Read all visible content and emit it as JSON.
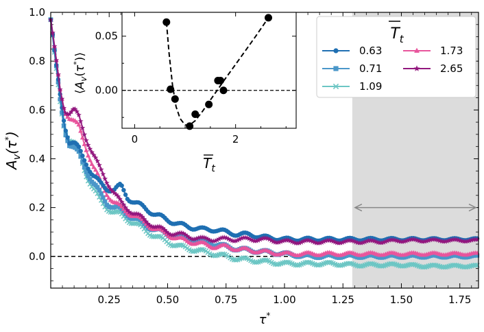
{
  "chart_data": [
    {
      "type": "line",
      "role": "main",
      "title": "",
      "xlabel": "τ*",
      "ylabel": "A_v(τ*)",
      "xlim": [
        0.0,
        1.83
      ],
      "ylim": [
        -0.13,
        1.0
      ],
      "xticks": [
        0.25,
        0.5,
        0.75,
        1.0,
        1.25,
        1.5,
        1.75
      ],
      "xtick_labels": [
        "0.25",
        "0.50",
        "0.75",
        "1.00",
        "1.25",
        "1.50",
        "1.75"
      ],
      "yticks": [
        0.0,
        0.2,
        0.4,
        0.6,
        0.8,
        1.0
      ],
      "ytick_labels": [
        "0.0",
        "0.2",
        "0.4",
        "0.6",
        "0.8",
        "1.0"
      ],
      "shaded_region": {
        "x_start": 1.29,
        "x_end": 1.83,
        "color": "#dcdcdc"
      },
      "double_arrow": {
        "x_start": 1.29,
        "x_end": 1.83,
        "y": 0.2,
        "color": "#888888"
      },
      "reference_line": {
        "y": 0.0,
        "style": "dashed"
      },
      "legend": {
        "title": "T̄_t",
        "placement": "top-right",
        "entries": [
          {
            "label": "0.63",
            "marker": "circle",
            "color": "#1f6fb2"
          },
          {
            "label": "1.73",
            "marker": "triangle",
            "color": "#e8559c"
          },
          {
            "label": "0.71",
            "marker": "square",
            "color": "#4a97c9"
          },
          {
            "label": "2.65",
            "marker": "star",
            "color": "#92177e"
          },
          {
            "label": "1.09",
            "marker": "x",
            "color": "#6cc6c4"
          }
        ]
      },
      "series": [
        {
          "name": "0.63",
          "color": "#1f6fb2",
          "marker": "circle",
          "x": [
            0.0,
            0.02,
            0.04,
            0.06,
            0.08,
            0.1,
            0.12,
            0.15,
            0.18,
            0.21,
            0.24,
            0.27,
            0.3,
            0.33,
            0.36,
            0.4,
            0.45,
            0.5,
            0.55,
            0.6,
            0.65,
            0.7,
            0.75,
            0.8,
            0.85,
            0.9,
            1.0,
            1.1,
            1.2,
            1.3,
            1.4,
            1.5,
            1.6,
            1.7,
            1.83
          ],
          "values": [
            0.97,
            0.8,
            0.66,
            0.54,
            0.47,
            0.46,
            0.44,
            0.39,
            0.33,
            0.3,
            0.28,
            0.27,
            0.29,
            0.24,
            0.22,
            0.2,
            0.17,
            0.15,
            0.13,
            0.12,
            0.11,
            0.11,
            0.1,
            0.09,
            0.09,
            0.08,
            0.07,
            0.07,
            0.07,
            0.07,
            0.07,
            0.07,
            0.07,
            0.07,
            0.07
          ]
        },
        {
          "name": "0.71",
          "color": "#4a97c9",
          "marker": "square",
          "x": [
            0.0,
            0.02,
            0.04,
            0.06,
            0.08,
            0.1,
            0.12,
            0.15,
            0.18,
            0.21,
            0.24,
            0.27,
            0.3,
            0.35,
            0.4,
            0.45,
            0.5,
            0.55,
            0.6,
            0.65,
            0.7,
            0.75,
            0.8,
            0.9,
            1.0,
            1.1,
            1.2,
            1.3,
            1.4,
            1.5,
            1.6,
            1.7,
            1.83
          ],
          "values": [
            0.97,
            0.8,
            0.64,
            0.52,
            0.46,
            0.44,
            0.42,
            0.36,
            0.3,
            0.26,
            0.22,
            0.2,
            0.19,
            0.16,
            0.13,
            0.11,
            0.09,
            0.08,
            0.07,
            0.06,
            0.05,
            0.04,
            0.03,
            0.02,
            0.01,
            0.0,
            0.0,
            0.0,
            0.0,
            0.0,
            0.0,
            0.0,
            0.0
          ]
        },
        {
          "name": "1.09",
          "color": "#6cc6c4",
          "marker": "x",
          "x": [
            0.0,
            0.02,
            0.04,
            0.06,
            0.08,
            0.1,
            0.12,
            0.15,
            0.18,
            0.21,
            0.24,
            0.27,
            0.3,
            0.35,
            0.4,
            0.45,
            0.5,
            0.55,
            0.6,
            0.65,
            0.7,
            0.75,
            0.8,
            0.9,
            1.0,
            1.1,
            1.2,
            1.3,
            1.4,
            1.5,
            1.6,
            1.7,
            1.83
          ],
          "values": [
            0.97,
            0.79,
            0.63,
            0.52,
            0.48,
            0.46,
            0.43,
            0.34,
            0.28,
            0.23,
            0.2,
            0.18,
            0.17,
            0.14,
            0.11,
            0.08,
            0.06,
            0.04,
            0.03,
            0.02,
            0.01,
            0.0,
            -0.01,
            -0.02,
            -0.03,
            -0.03,
            -0.03,
            -0.035,
            -0.035,
            -0.035,
            -0.04,
            -0.04,
            -0.04
          ]
        },
        {
          "name": "1.73",
          "color": "#e8559c",
          "marker": "triangle",
          "x": [
            0.0,
            0.02,
            0.04,
            0.06,
            0.08,
            0.1,
            0.12,
            0.15,
            0.18,
            0.21,
            0.24,
            0.27,
            0.3,
            0.35,
            0.4,
            0.45,
            0.5,
            0.55,
            0.6,
            0.65,
            0.7,
            0.75,
            0.8,
            0.9,
            1.0,
            1.1,
            1.2,
            1.3,
            1.4,
            1.5,
            1.6,
            1.7,
            1.83
          ],
          "values": [
            0.97,
            0.82,
            0.68,
            0.6,
            0.57,
            0.55,
            0.53,
            0.45,
            0.37,
            0.31,
            0.26,
            0.22,
            0.2,
            0.17,
            0.14,
            0.11,
            0.09,
            0.07,
            0.06,
            0.05,
            0.04,
            0.04,
            0.03,
            0.02,
            0.01,
            0.01,
            0.01,
            0.01,
            0.01,
            0.01,
            0.01,
            0.01,
            0.01
          ]
        },
        {
          "name": "2.65",
          "color": "#92177e",
          "marker": "star",
          "x": [
            0.0,
            0.02,
            0.04,
            0.06,
            0.08,
            0.1,
            0.12,
            0.15,
            0.18,
            0.21,
            0.24,
            0.27,
            0.3,
            0.35,
            0.4,
            0.45,
            0.5,
            0.55,
            0.6,
            0.65,
            0.7,
            0.75,
            0.8,
            0.9,
            1.0,
            1.1,
            1.2,
            1.3,
            1.4,
            1.5,
            1.6,
            1.7,
            1.83
          ],
          "values": [
            0.97,
            0.82,
            0.68,
            0.6,
            0.59,
            0.6,
            0.57,
            0.49,
            0.42,
            0.36,
            0.31,
            0.26,
            0.22,
            0.18,
            0.15,
            0.12,
            0.1,
            0.09,
            0.08,
            0.07,
            0.07,
            0.07,
            0.07,
            0.07,
            0.06,
            0.06,
            0.06,
            0.06,
            0.06,
            0.065,
            0.065,
            0.065,
            0.065
          ]
        }
      ]
    },
    {
      "type": "scatter",
      "role": "inset",
      "title": "",
      "xlabel": "T̄_t",
      "ylabel": "⟨A_v(τ*)⟩",
      "xlim": [
        -0.25,
        3.2
      ],
      "ylim": [
        -0.035,
        0.072
      ],
      "xticks": [
        0,
        2
      ],
      "xtick_labels": [
        "0",
        "2"
      ],
      "yticks": [
        0.0,
        0.05
      ],
      "ytick_labels": [
        "0.00",
        "0.05"
      ],
      "reference_line": {
        "y": 0.0,
        "style": "dashed"
      },
      "points": {
        "x": [
          0.63,
          0.71,
          0.8,
          1.09,
          1.2,
          1.47,
          1.65,
          1.7,
          1.76,
          2.65
        ],
        "y": [
          0.063,
          0.001,
          -0.008,
          -0.033,
          -0.022,
          -0.013,
          0.009,
          0.009,
          0.0,
          0.067
        ]
      },
      "fit_curve": {
        "x": [
          0.63,
          0.68,
          0.75,
          0.82,
          0.9,
          1.0,
          1.09,
          1.2,
          1.35,
          1.5,
          1.65,
          1.8,
          2.0,
          2.2,
          2.4,
          2.65
        ],
        "y": [
          0.063,
          0.035,
          0.005,
          -0.015,
          -0.026,
          -0.032,
          -0.032,
          -0.028,
          -0.019,
          -0.009,
          0.001,
          0.011,
          0.024,
          0.037,
          0.05,
          0.067
        ]
      }
    }
  ]
}
